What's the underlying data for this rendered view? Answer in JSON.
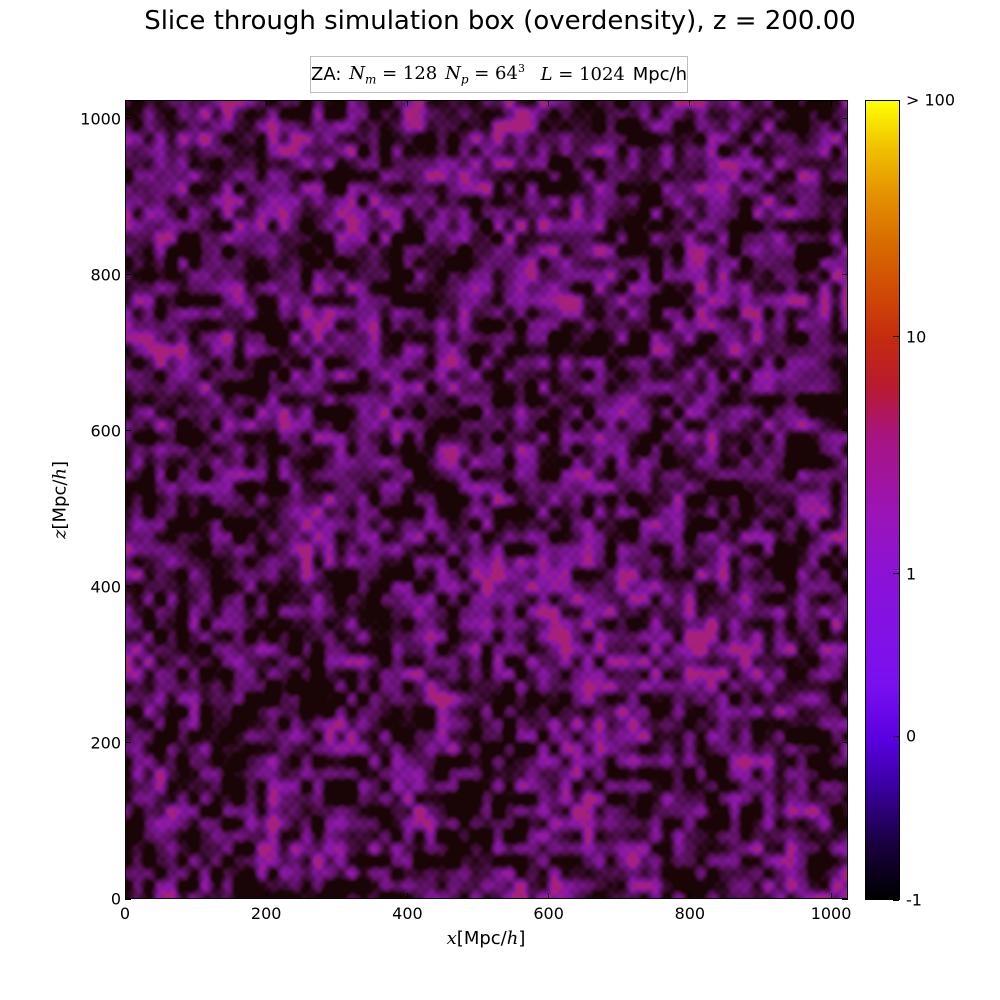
{
  "chart_data": {
    "type": "heatmap",
    "title": "Slice through simulation box (overdensity), z = 200.00",
    "legend": {
      "prefix": "ZA:",
      "nm_symbol": "N",
      "nm_sub": "m",
      "nm_value": "128",
      "np_symbol": "N",
      "np_sub": "p",
      "np_base": "64",
      "np_exp": "3",
      "l_symbol": "L",
      "l_value": "1024",
      "l_unit": "Mpc/h"
    },
    "xlabel": {
      "var": "x",
      "unit": "Mpc/",
      "h": "h"
    },
    "ylabel": {
      "var": "z",
      "unit": "Mpc/",
      "h": "h"
    },
    "xlim": [
      0,
      1024
    ],
    "ylim": [
      0,
      1024
    ],
    "xticks": [
      "0",
      "200",
      "400",
      "600",
      "800",
      "1000"
    ],
    "yticks": [
      "0",
      "200",
      "400",
      "600",
      "800",
      "1000"
    ],
    "colorbar": {
      "colormap": "gnuplot",
      "range": [
        -1,
        100
      ],
      "ticks": [
        {
          "label": "-1",
          "frac": 0.0
        },
        {
          "label": "0",
          "frac": 0.205
        },
        {
          "label": "1",
          "frac": 0.408
        },
        {
          "label": "10",
          "frac": 0.704
        },
        {
          "label": "> 100",
          "frac": 1.0
        }
      ]
    },
    "grid": false
  },
  "colors": {
    "void": "#1a0506",
    "mean": "#4a0f48",
    "overdense": "#8a18a8",
    "peak": "#c02a4a"
  }
}
